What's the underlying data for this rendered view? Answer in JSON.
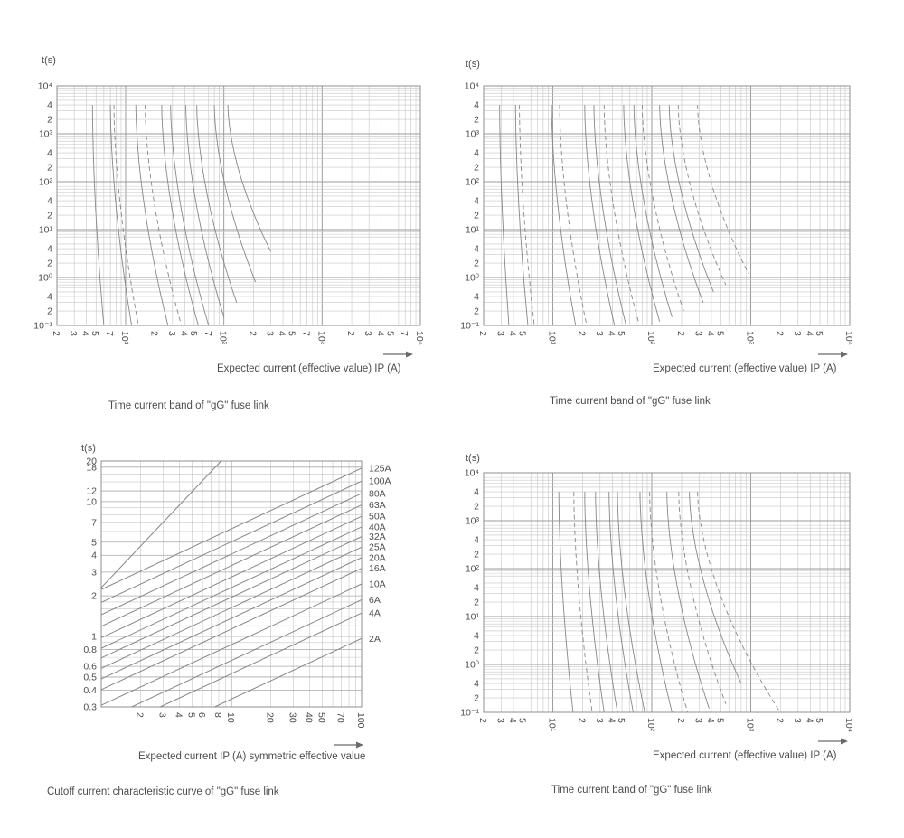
{
  "colors": {
    "background": "#ffffff",
    "text": "#4d4d4d",
    "grid_minor": "#c6c6c6",
    "grid_major": "#9b9b9b",
    "border": "#8f8f8f",
    "curve": "#878787",
    "arrow": "#6a6a6a"
  },
  "chart_data": [
    {
      "id": "time-current-top-left",
      "type": "line",
      "kind": "time_current",
      "ylabel": "t(s)",
      "xlabel": "Expected current (effective value) IP (A)",
      "caption": "Time current band of \"gG\" fuse link",
      "x_range": [
        2,
        10000
      ],
      "y_range": [
        0.1,
        10000
      ],
      "x_ticks": [
        {
          "v": 2,
          "l": "2"
        },
        {
          "v": 3,
          "l": "3"
        },
        {
          "v": 4,
          "l": "4"
        },
        {
          "v": 5,
          "l": "5"
        },
        {
          "v": 7,
          "l": "7"
        },
        {
          "v": 10,
          "l": "10¹"
        },
        {
          "v": 20,
          "l": "2"
        },
        {
          "v": 30,
          "l": "3"
        },
        {
          "v": 40,
          "l": "4"
        },
        {
          "v": 50,
          "l": "5"
        },
        {
          "v": 70,
          "l": "7"
        },
        {
          "v": 100,
          "l": "10²"
        },
        {
          "v": 200,
          "l": "2"
        },
        {
          "v": 300,
          "l": "3"
        },
        {
          "v": 400,
          "l": "4"
        },
        {
          "v": 500,
          "l": "5"
        },
        {
          "v": 700,
          "l": "7"
        },
        {
          "v": 1000,
          "l": "10³"
        },
        {
          "v": 2000,
          "l": "2"
        },
        {
          "v": 3000,
          "l": "3"
        },
        {
          "v": 4000,
          "l": "4"
        },
        {
          "v": 5000,
          "l": "5"
        },
        {
          "v": 7000,
          "l": "7"
        },
        {
          "v": 10000,
          "l": "10⁴"
        }
      ],
      "y_ticks": [
        {
          "v": 10000,
          "l": "10⁴"
        },
        {
          "v": 4000,
          "l": "4"
        },
        {
          "v": 2000,
          "l": "2"
        },
        {
          "v": 1000,
          "l": "10³"
        },
        {
          "v": 400,
          "l": "4"
        },
        {
          "v": 200,
          "l": "2"
        },
        {
          "v": 100,
          "l": "10²"
        },
        {
          "v": 40,
          "l": "4"
        },
        {
          "v": 20,
          "l": "2"
        },
        {
          "v": 10,
          "l": "10¹"
        },
        {
          "v": 4,
          "l": "4"
        },
        {
          "v": 2,
          "l": "2"
        },
        {
          "v": 1,
          "l": "10⁰"
        },
        {
          "v": 0.4,
          "l": "4"
        },
        {
          "v": 0.2,
          "l": "2"
        },
        {
          "v": 0.1,
          "l": "10⁻¹"
        }
      ],
      "curves": [
        {
          "style": "solid",
          "i_at_4000s": 4.6,
          "i_end": 6.0,
          "t_end": 0.1
        },
        {
          "style": "solid",
          "i_at_4000s": 7.0,
          "i_end": 11.5,
          "t_end": 0.1
        },
        {
          "style": "dashed",
          "i_at_4000s": 7.6,
          "i_end": 13.5,
          "t_end": 0.1
        },
        {
          "style": "solid",
          "i_at_4000s": 12.7,
          "i_end": 27,
          "t_end": 0.1
        },
        {
          "style": "dashed",
          "i_at_4000s": 15.8,
          "i_end": 37,
          "t_end": 0.1
        },
        {
          "style": "solid",
          "i_at_4000s": 23.3,
          "i_end": 55,
          "t_end": 0.1
        },
        {
          "style": "solid",
          "i_at_4000s": 28.7,
          "i_end": 70,
          "t_end": 0.1
        },
        {
          "style": "solid",
          "i_at_4000s": 41,
          "i_end": 100,
          "t_end": 0.15
        },
        {
          "style": "solid",
          "i_at_4000s": 53,
          "i_end": 135,
          "t_end": 0.3
        },
        {
          "style": "solid",
          "i_at_4000s": 80,
          "i_end": 210,
          "t_end": 0.8
        },
        {
          "style": "solid",
          "i_at_4000s": 110,
          "i_end": 300,
          "t_end": 3.5
        }
      ]
    },
    {
      "id": "time-current-top-right",
      "type": "line",
      "kind": "time_current",
      "ylabel": "t(s)",
      "xlabel": "Expected current (effective value) IP (A)",
      "caption": "Time current band of \"gG\" fuse link",
      "x_range": [
        2,
        10000
      ],
      "y_range": [
        0.1,
        10000
      ],
      "x_ticks": [
        {
          "v": 2,
          "l": "2"
        },
        {
          "v": 3,
          "l": "3"
        },
        {
          "v": 4,
          "l": "4"
        },
        {
          "v": 5,
          "l": "5"
        },
        {
          "v": 10,
          "l": "10¹"
        },
        {
          "v": 20,
          "l": "2"
        },
        {
          "v": 30,
          "l": "3"
        },
        {
          "v": 40,
          "l": "4"
        },
        {
          "v": 50,
          "l": "5"
        },
        {
          "v": 100,
          "l": "10²"
        },
        {
          "v": 200,
          "l": "2"
        },
        {
          "v": 300,
          "l": "3"
        },
        {
          "v": 400,
          "l": "4"
        },
        {
          "v": 500,
          "l": "5"
        },
        {
          "v": 1000,
          "l": "10³"
        },
        {
          "v": 2000,
          "l": "2"
        },
        {
          "v": 3000,
          "l": "3"
        },
        {
          "v": 4000,
          "l": "4"
        },
        {
          "v": 5000,
          "l": "5"
        },
        {
          "v": 10000,
          "l": "10⁴"
        }
      ],
      "y_ticks": [
        {
          "v": 10000,
          "l": "10⁴"
        },
        {
          "v": 4000,
          "l": "4"
        },
        {
          "v": 2000,
          "l": "2"
        },
        {
          "v": 1000,
          "l": "10³"
        },
        {
          "v": 400,
          "l": "4"
        },
        {
          "v": 200,
          "l": "2"
        },
        {
          "v": 100,
          "l": "10²"
        },
        {
          "v": 40,
          "l": "4"
        },
        {
          "v": 20,
          "l": "2"
        },
        {
          "v": 10,
          "l": "10¹"
        },
        {
          "v": 4,
          "l": "4"
        },
        {
          "v": 2,
          "l": "2"
        },
        {
          "v": 1,
          "l": "10⁰"
        },
        {
          "v": 0.4,
          "l": "4"
        },
        {
          "v": 0.2,
          "l": "2"
        },
        {
          "v": 0.1,
          "l": "10⁻¹"
        }
      ],
      "curves": [
        {
          "style": "solid",
          "i_at_4000s": 2.9,
          "i_end": 3.6,
          "t_end": 0.1
        },
        {
          "style": "solid",
          "i_at_4000s": 4.2,
          "i_end": 5.6,
          "t_end": 0.1
        },
        {
          "style": "dashed",
          "i_at_4000s": 4.6,
          "i_end": 6.5,
          "t_end": 0.1
        },
        {
          "style": "solid",
          "i_at_4000s": 9.7,
          "i_end": 17,
          "t_end": 0.1
        },
        {
          "style": "dashed",
          "i_at_4000s": 11.7,
          "i_end": 22,
          "t_end": 0.1
        },
        {
          "style": "solid",
          "i_at_4000s": 21,
          "i_end": 42,
          "t_end": 0.1
        },
        {
          "style": "solid",
          "i_at_4000s": 26,
          "i_end": 55,
          "t_end": 0.1
        },
        {
          "style": "dashed",
          "i_at_4000s": 33,
          "i_end": 75,
          "t_end": 0.1
        },
        {
          "style": "solid",
          "i_at_4000s": 52,
          "i_end": 120,
          "t_end": 0.12
        },
        {
          "style": "solid",
          "i_at_4000s": 66,
          "i_end": 160,
          "t_end": 0.15
        },
        {
          "style": "dashed",
          "i_at_4000s": 80,
          "i_end": 210,
          "t_end": 0.2
        },
        {
          "style": "solid",
          "i_at_4000s": 120,
          "i_end": 330,
          "t_end": 0.3
        },
        {
          "style": "solid",
          "i_at_4000s": 150,
          "i_end": 420,
          "t_end": 0.5
        },
        {
          "style": "dashed",
          "i_at_4000s": 185,
          "i_end": 560,
          "t_end": 0.7
        },
        {
          "style": "dashed",
          "i_at_4000s": 290,
          "i_end": 950,
          "t_end": 1.2
        }
      ]
    },
    {
      "id": "cutoff-current-bottom-left",
      "type": "line",
      "kind": "cutoff",
      "ylabel": "t(s)",
      "xlabel": "Expected current IP (A) symmetric effective value",
      "caption": "Cutoff current characteristic curve of \"gG\" fuse link",
      "x_range": [
        1,
        100
      ],
      "y_range": [
        0.3,
        20
      ],
      "x_ticks": [
        {
          "v": 2,
          "l": "2"
        },
        {
          "v": 3,
          "l": "3"
        },
        {
          "v": 4,
          "l": "4"
        },
        {
          "v": 5,
          "l": "5"
        },
        {
          "v": 6,
          "l": "6"
        },
        {
          "v": 8,
          "l": "8"
        },
        {
          "v": 10,
          "l": "10"
        },
        {
          "v": 20,
          "l": "20"
        },
        {
          "v": 30,
          "l": "30"
        },
        {
          "v": 40,
          "l": "40"
        },
        {
          "v": 50,
          "l": "50"
        },
        {
          "v": 70,
          "l": "70"
        },
        {
          "v": 100,
          "l": "100"
        }
      ],
      "y_ticks": [
        {
          "v": 20,
          "l": "20"
        },
        {
          "v": 18,
          "l": "18"
        },
        {
          "v": 12,
          "l": "12"
        },
        {
          "v": 10,
          "l": "10"
        },
        {
          "v": 7,
          "l": "7"
        },
        {
          "v": 5,
          "l": "5"
        },
        {
          "v": 4,
          "l": "4"
        },
        {
          "v": 3,
          "l": "3"
        },
        {
          "v": 2,
          "l": "2"
        },
        {
          "v": 1,
          "l": "1"
        },
        {
          "v": 0.8,
          "l": "0.8"
        },
        {
          "v": 0.6,
          "l": "0.6"
        },
        {
          "v": 0.5,
          "l": "0.5"
        },
        {
          "v": 0.4,
          "l": "0.4"
        },
        {
          "v": 0.3,
          "l": "0.3"
        }
      ],
      "y_grid": [
        20,
        18,
        16,
        14,
        12,
        10,
        9,
        8,
        7,
        6,
        5,
        4,
        3,
        2,
        1.8,
        1.6,
        1.4,
        1.2,
        1,
        0.9,
        0.8,
        0.7,
        0.6,
        0.5,
        0.4,
        0.3
      ],
      "x_grid": [
        2,
        3,
        4,
        5,
        6,
        7,
        8,
        9,
        10,
        20,
        30,
        40,
        50,
        60,
        70,
        80,
        90
      ],
      "slope_log": 0.45,
      "lines": [
        {
          "label": "125A",
          "y_at_x100": 17.7
        },
        {
          "label": "100A",
          "y_at_x100": 14.2
        },
        {
          "label": "80A",
          "y_at_x100": 11.5
        },
        {
          "label": "63A",
          "y_at_x100": 9.45
        },
        {
          "label": "50A",
          "y_at_x100": 7.77
        },
        {
          "label": "40A",
          "y_at_x100": 6.49
        },
        {
          "label": "32A",
          "y_at_x100": 5.5
        },
        {
          "label": "25A",
          "y_at_x100": 4.6
        },
        {
          "label": "20A",
          "y_at_x100": 3.84
        },
        {
          "label": "16A",
          "y_at_x100": 3.2
        },
        {
          "label": "10A",
          "y_at_x100": 2.45
        },
        {
          "label": "6A",
          "y_at_x100": 1.87
        },
        {
          "label": "4A",
          "y_at_x100": 1.49
        },
        {
          "label": "2A",
          "y_at_x100": 0.966
        }
      ],
      "prospective_line": {
        "y_at_x1": 2.3,
        "slope": 1.02
      }
    },
    {
      "id": "time-current-bottom-right",
      "type": "line",
      "kind": "time_current",
      "ylabel": "t(s)",
      "xlabel": "Expected current (effective value) IP (A)",
      "caption": "Time current band of \"gG\" fuse link",
      "x_range": [
        2,
        10000
      ],
      "y_range": [
        0.1,
        10000
      ],
      "x_ticks": [
        {
          "v": 2,
          "l": "2"
        },
        {
          "v": 3,
          "l": "3"
        },
        {
          "v": 4,
          "l": "4"
        },
        {
          "v": 5,
          "l": "5"
        },
        {
          "v": 10,
          "l": "10¹"
        },
        {
          "v": 20,
          "l": "2"
        },
        {
          "v": 30,
          "l": "3"
        },
        {
          "v": 40,
          "l": "4"
        },
        {
          "v": 50,
          "l": "5"
        },
        {
          "v": 100,
          "l": "10²"
        },
        {
          "v": 200,
          "l": "2"
        },
        {
          "v": 300,
          "l": "3"
        },
        {
          "v": 400,
          "l": "4"
        },
        {
          "v": 500,
          "l": "5"
        },
        {
          "v": 1000,
          "l": "10³"
        },
        {
          "v": 2000,
          "l": "2"
        },
        {
          "v": 3000,
          "l": "3"
        },
        {
          "v": 4000,
          "l": "4"
        },
        {
          "v": 5000,
          "l": "5"
        },
        {
          "v": 10000,
          "l": "10⁴"
        }
      ],
      "y_ticks": [
        {
          "v": 10000,
          "l": "10⁴"
        },
        {
          "v": 4000,
          "l": "4"
        },
        {
          "v": 2000,
          "l": "2"
        },
        {
          "v": 1000,
          "l": "10³"
        },
        {
          "v": 400,
          "l": "4"
        },
        {
          "v": 200,
          "l": "2"
        },
        {
          "v": 100,
          "l": "10²"
        },
        {
          "v": 40,
          "l": "4"
        },
        {
          "v": 20,
          "l": "2"
        },
        {
          "v": 10,
          "l": "10¹"
        },
        {
          "v": 4,
          "l": "4"
        },
        {
          "v": 2,
          "l": "2"
        },
        {
          "v": 1,
          "l": "10⁰"
        },
        {
          "v": 0.4,
          "l": "4"
        },
        {
          "v": 0.2,
          "l": "2"
        },
        {
          "v": 0.1,
          "l": "10⁻¹"
        }
      ],
      "curves": [
        {
          "style": "solid",
          "i_at_4000s": 11.5,
          "i_end": 16,
          "t_end": 0.1
        },
        {
          "style": "dashed",
          "i_at_4000s": 16.3,
          "i_end": 25,
          "t_end": 0.1
        },
        {
          "style": "solid",
          "i_at_4000s": 21,
          "i_end": 33,
          "t_end": 0.1
        },
        {
          "style": "solid",
          "i_at_4000s": 27,
          "i_end": 45,
          "t_end": 0.1
        },
        {
          "style": "solid",
          "i_at_4000s": 37,
          "i_end": 65,
          "t_end": 0.1
        },
        {
          "style": "solid",
          "i_at_4000s": 45,
          "i_end": 85,
          "t_end": 0.1
        },
        {
          "style": "solid",
          "i_at_4000s": 76,
          "i_end": 160,
          "t_end": 0.1
        },
        {
          "style": "dashed",
          "i_at_4000s": 95,
          "i_end": 230,
          "t_end": 0.1
        },
        {
          "style": "solid",
          "i_at_4000s": 142,
          "i_end": 380,
          "t_end": 0.12
        },
        {
          "style": "dashed",
          "i_at_4000s": 187,
          "i_end": 560,
          "t_end": 0.15
        },
        {
          "style": "solid",
          "i_at_4000s": 240,
          "i_end": 800,
          "t_end": 0.4
        },
        {
          "style": "dashed",
          "i_at_4000s": 290,
          "i_end": 1980,
          "t_end": 0.1
        }
      ]
    }
  ]
}
